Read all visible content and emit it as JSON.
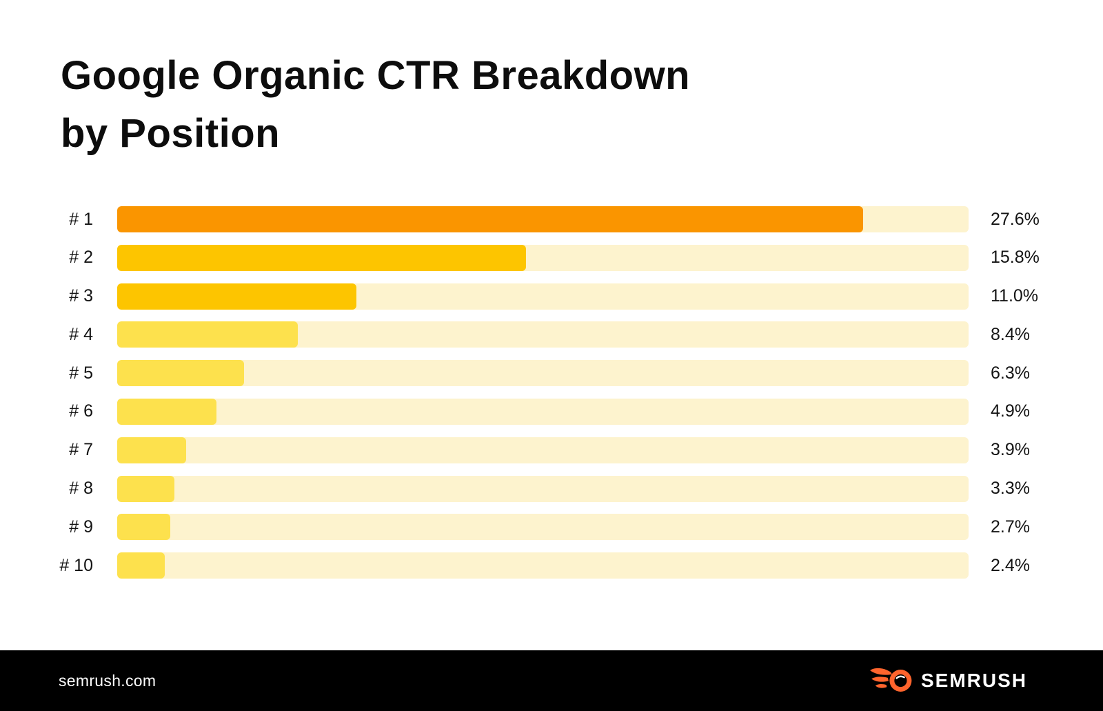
{
  "page": {
    "title_line1": "Google Organic CTR Breakdown",
    "title_line2": "by Position"
  },
  "chart_data": {
    "type": "bar",
    "orientation": "horizontal",
    "title": "Google Organic CTR Breakdown by Position",
    "categories": [
      "# 1",
      "# 2",
      "# 3",
      "# 4",
      "# 5",
      "# 6",
      "# 7",
      "# 8",
      "# 9",
      "# 10"
    ],
    "values": [
      27.6,
      15.8,
      11.0,
      8.4,
      6.3,
      4.9,
      3.9,
      3.3,
      2.7,
      2.4
    ],
    "value_labels": [
      "27.6%",
      "15.8%",
      "11.0%",
      "8.4%",
      "6.3%",
      "4.9%",
      "3.9%",
      "3.3%",
      "2.7%",
      "2.4%"
    ],
    "bar_colors": [
      "#FA9500",
      "#FDC500",
      "#FDC500",
      "#FDE14D",
      "#FDE14D",
      "#FDE14D",
      "#FDE14D",
      "#FDE14D",
      "#FDE14D",
      "#FDE14D"
    ],
    "track_color": "#FDF3CE",
    "bar_fill_pct": [
      87.6,
      48.0,
      28.1,
      21.2,
      14.9,
      11.7,
      8.1,
      6.7,
      6.2,
      5.6
    ],
    "xlabel": "",
    "ylabel": "",
    "grid": false,
    "legend": false
  },
  "footer": {
    "site_url": "semrush.com",
    "brand_name": "SEMRUSH",
    "background": "#000000",
    "logo_color": "#FF642D"
  }
}
